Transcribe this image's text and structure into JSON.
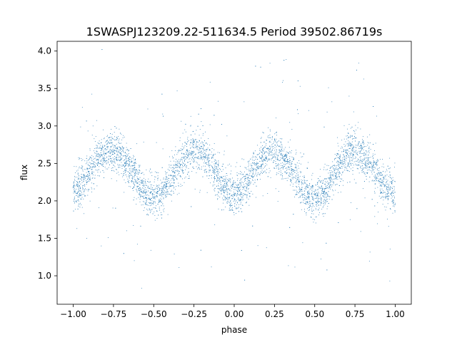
{
  "chart_data": {
    "type": "scatter",
    "title": "1SWASPJ123209.22-511634.5 Period 39502.86719s",
    "xlabel": "phase",
    "ylabel": "flux",
    "xlim": [
      -1.1,
      1.1
    ],
    "ylim": [
      0.62,
      4.13
    ],
    "xticks": [
      -1.0,
      -0.75,
      -0.5,
      -0.25,
      0.0,
      0.25,
      0.5,
      0.75,
      1.0
    ],
    "xtick_labels": [
      "−1.00",
      "−0.75",
      "−0.50",
      "−0.25",
      "0.00",
      "0.25",
      "0.50",
      "0.75",
      "1.00"
    ],
    "yticks": [
      1.0,
      1.5,
      2.0,
      2.5,
      3.0,
      3.5,
      4.0
    ],
    "ytick_labels": [
      "1.0",
      "1.5",
      "2.0",
      "2.5",
      "3.0",
      "3.5",
      "4.0"
    ],
    "grid": false,
    "legend": false,
    "marker_color": "#1f77b4",
    "series": [
      {
        "x": [
          -1.0,
          -0.95,
          -0.9,
          -0.85,
          -0.8,
          -0.75,
          -0.7,
          -0.65,
          -0.6,
          -0.55,
          -0.5,
          -0.45,
          -0.4,
          -0.35,
          -0.3,
          -0.25,
          -0.2,
          -0.15,
          -0.1,
          -0.05,
          0.0,
          0.05,
          0.1,
          0.15,
          0.2,
          0.25,
          0.3,
          0.35,
          0.4,
          0.45,
          0.5,
          0.55,
          0.6,
          0.65,
          0.7,
          0.75,
          0.8,
          0.85,
          0.9,
          0.95,
          1.0
        ],
        "y": [
          2.08,
          2.22,
          2.4,
          2.57,
          2.66,
          2.68,
          2.6,
          2.45,
          2.27,
          2.1,
          2.03,
          2.08,
          2.24,
          2.44,
          2.6,
          2.68,
          2.64,
          2.5,
          2.32,
          2.15,
          2.07,
          2.14,
          2.31,
          2.5,
          2.63,
          2.67,
          2.6,
          2.44,
          2.25,
          2.08,
          2.01,
          2.09,
          2.27,
          2.47,
          2.62,
          2.68,
          2.63,
          2.49,
          2.31,
          2.16,
          2.08
        ]
      }
    ]
  }
}
